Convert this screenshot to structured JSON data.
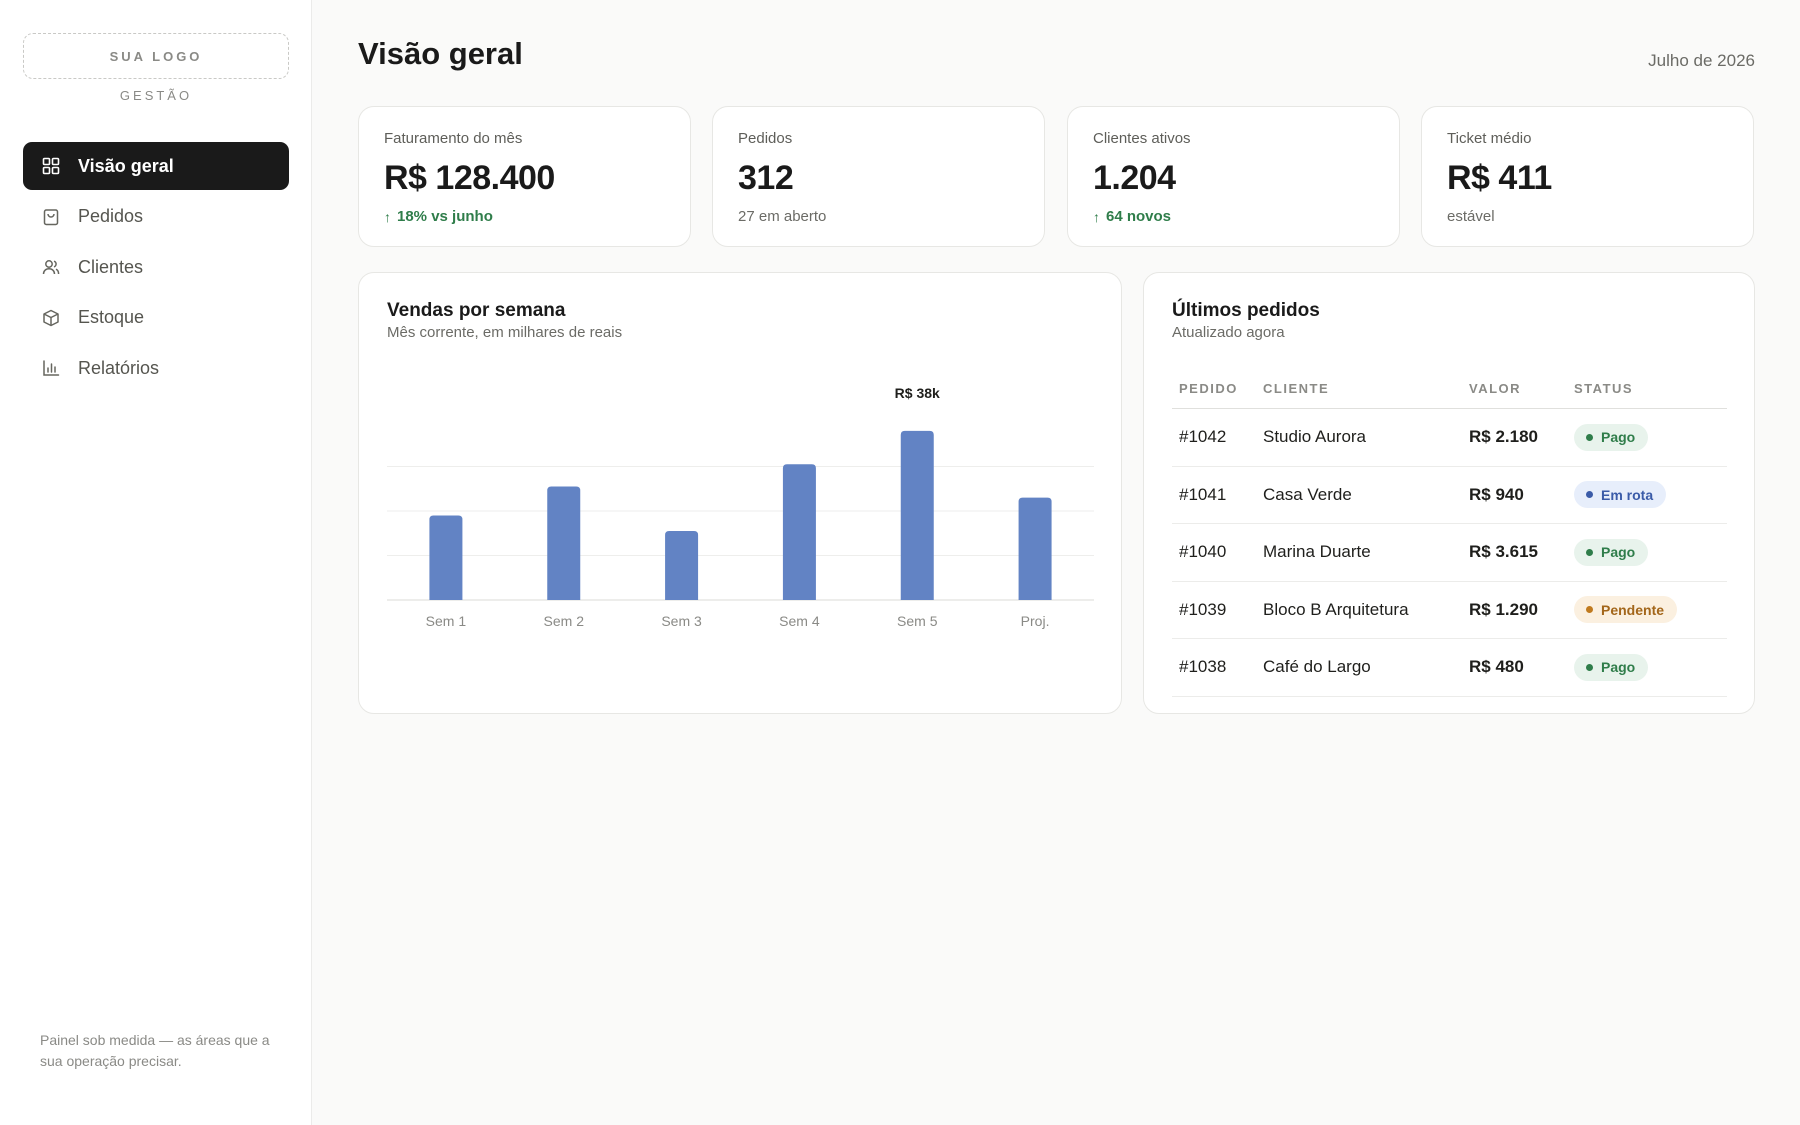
{
  "sidebar": {
    "logo": "SUA LOGO",
    "logo_sub": "GESTÃO",
    "items": [
      {
        "label": "Visão geral",
        "icon": "grid-icon",
        "active": true
      },
      {
        "label": "Pedidos",
        "icon": "bag-icon"
      },
      {
        "label": "Clientes",
        "icon": "users-icon"
      },
      {
        "label": "Estoque",
        "icon": "box-icon"
      },
      {
        "label": "Relatórios",
        "icon": "bar-chart-icon"
      }
    ],
    "footnote": "Painel sob medida — as áreas que a sua operação precisar."
  },
  "header": {
    "title": "Visão geral",
    "date": "Julho de 2026"
  },
  "kpis": [
    {
      "label": "Faturamento do mês",
      "value": "R$ 128.400",
      "foot": "18% vs junho",
      "trend": "up"
    },
    {
      "label": "Pedidos",
      "value": "312",
      "foot": "27 em aberto",
      "trend": "none"
    },
    {
      "label": "Clientes ativos",
      "value": "1.204",
      "foot": "64 novos",
      "trend": "up"
    },
    {
      "label": "Ticket médio",
      "value": "R$ 411",
      "foot": "estável",
      "trend": "none"
    }
  ],
  "sales_panel": {
    "title": "Vendas por semana",
    "subtitle": "Mês corrente, em milhares de reais"
  },
  "chart_data": {
    "type": "bar",
    "title": "Vendas por semana",
    "subtitle": "Mês corrente, em milhares de reais",
    "categories": [
      "Sem 1",
      "Sem 2",
      "Sem 3",
      "Sem 4",
      "Sem 5",
      "Proj."
    ],
    "values": [
      19,
      25.5,
      15.5,
      30.5,
      38,
      23
    ],
    "annotations": [
      {
        "category": "Sem 5",
        "text": "R$ 38k"
      }
    ],
    "ylim": [
      0,
      40
    ],
    "grid": true,
    "color": "#6283c4"
  },
  "orders": {
    "title": "Últimos pedidos",
    "subtitle": "Atualizado agora",
    "columns": [
      "PEDIDO",
      "CLIENTE",
      "VALOR",
      "STATUS"
    ],
    "rows": [
      {
        "id": "#1042",
        "client": "Studio Aurora",
        "value": "R$ 2.180",
        "status": "Pago",
        "kind": "pago"
      },
      {
        "id": "#1041",
        "client": "Casa Verde",
        "value": "R$ 940",
        "status": "Em rota",
        "kind": "rota"
      },
      {
        "id": "#1040",
        "client": "Marina Duarte",
        "value": "R$ 3.615",
        "status": "Pago",
        "kind": "pago"
      },
      {
        "id": "#1039",
        "client": "Bloco B Arquitetura",
        "value": "R$ 1.290",
        "status": "Pendente",
        "kind": "pendente"
      },
      {
        "id": "#1038",
        "client": "Café do Largo",
        "value": "R$ 480",
        "status": "Pago",
        "kind": "pago"
      }
    ]
  }
}
